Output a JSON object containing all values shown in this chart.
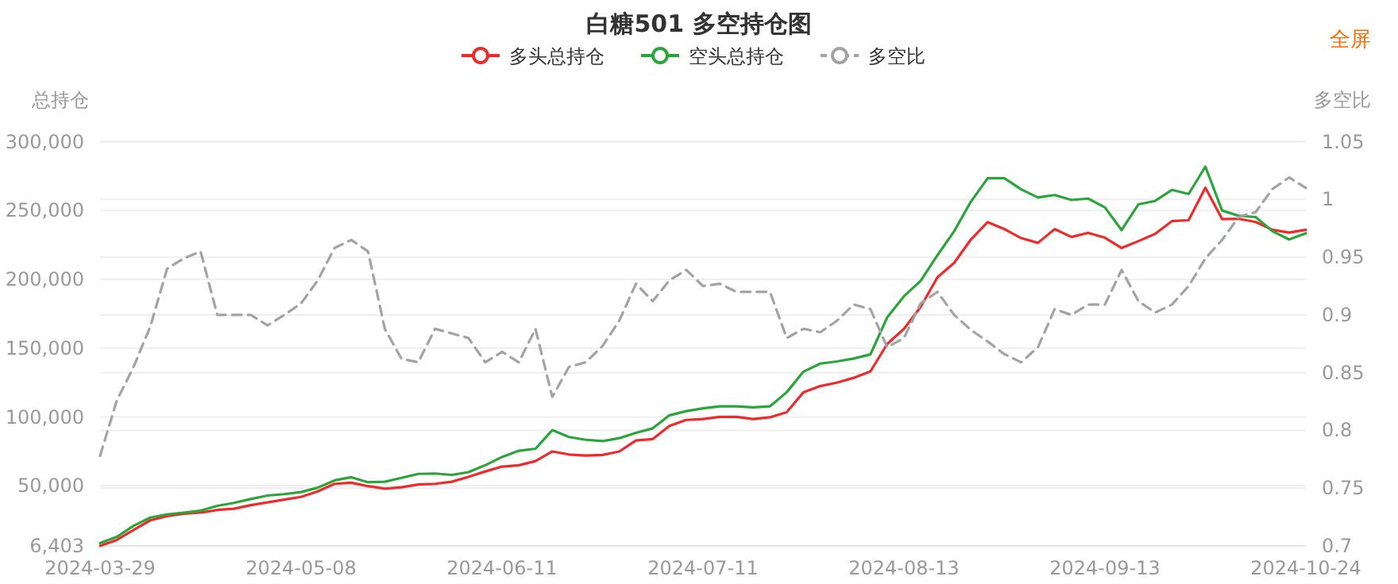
{
  "chart_data": {
    "type": "line",
    "title": "白糖501 多空持仓图",
    "ylabel": "总持仓",
    "y2label": "多空比",
    "annotations": [
      "全屏"
    ],
    "categories": [
      "2024-03-29",
      null,
      null,
      null,
      null,
      null,
      null,
      null,
      null,
      null,
      null,
      null,
      "2024-05-08",
      null,
      null,
      null,
      null,
      null,
      null,
      null,
      null,
      null,
      null,
      null,
      "2024-06-11",
      null,
      null,
      null,
      null,
      null,
      null,
      null,
      null,
      null,
      null,
      null,
      "2024-07-11",
      null,
      null,
      null,
      null,
      null,
      null,
      null,
      null,
      null,
      null,
      null,
      "2024-08-13",
      null,
      null,
      null,
      null,
      null,
      null,
      null,
      null,
      null,
      null,
      null,
      "2024-09-13",
      null,
      null,
      null,
      null,
      null,
      null,
      null,
      null,
      null,
      null,
      null,
      "2024-10-24"
    ],
    "series": [
      {
        "name": "多头总持仓",
        "color": "#ee2a2a",
        "values": [
          6403,
          10800,
          18000,
          25000,
          28000,
          29800,
          30600,
          32500,
          33400,
          36000,
          38000,
          40000,
          42000,
          46000,
          51500,
          52300,
          49800,
          48000,
          49000,
          51000,
          51500,
          53000,
          56500,
          60500,
          64000,
          65000,
          68000,
          75000,
          72800,
          72000,
          72500,
          75000,
          83000,
          84000,
          93600,
          97900,
          98500,
          100100,
          100100,
          98600,
          99800,
          103500,
          118000,
          122500,
          125000,
          128500,
          133200,
          153100,
          164000,
          180000,
          201500,
          212000,
          229000,
          241600,
          236500,
          230000,
          226500,
          236500,
          230800,
          233800,
          230300,
          222800,
          227800,
          233000,
          242300,
          243000,
          266600,
          243800,
          244000,
          241700,
          236000,
          234000,
          236000
        ]
      },
      {
        "name": "空头总持仓",
        "color": "#2aa53a",
        "values": [
          8400,
          13000,
          21000,
          27000,
          29300,
          30600,
          32000,
          35500,
          37700,
          40500,
          43000,
          44000,
          45500,
          48700,
          54000,
          56300,
          52700,
          53000,
          55800,
          58700,
          59000,
          58000,
          60000,
          65000,
          71000,
          75500,
          77000,
          90500,
          85500,
          83500,
          82500,
          84700,
          88500,
          91800,
          101300,
          104300,
          106300,
          107800,
          107800,
          107100,
          107800,
          118000,
          133000,
          138800,
          140400,
          142500,
          145500,
          172400,
          187700,
          199000,
          217500,
          235000,
          256500,
          273500,
          273500,
          265400,
          259500,
          261300,
          257700,
          258700,
          252300,
          235800,
          254500,
          257000,
          265000,
          262000,
          281900,
          250000,
          246200,
          245300,
          235000,
          229000,
          233500
        ]
      },
      {
        "name": "多空比",
        "color": "#a3a3a3",
        "axis": "y2",
        "line_style": "dashed",
        "values": [
          0.778,
          0.826,
          0.855,
          0.89,
          0.94,
          0.949,
          0.955,
          0.9,
          0.9,
          0.9,
          0.891,
          0.9,
          0.91,
          0.93,
          0.958,
          0.965,
          0.955,
          0.888,
          0.862,
          0.859,
          0.888,
          0.884,
          0.88,
          0.859,
          0.868,
          0.859,
          0.888,
          0.829,
          0.855,
          0.859,
          0.873,
          0.895,
          0.927,
          0.912,
          0.93,
          0.939,
          0.925,
          0.927,
          0.92,
          0.92,
          0.92,
          0.88,
          0.888,
          0.885,
          0.895,
          0.909,
          0.905,
          0.872,
          0.88,
          0.91,
          0.92,
          0.9,
          0.887,
          0.877,
          0.866,
          0.859,
          0.872,
          0.905,
          0.9,
          0.909,
          0.909,
          0.939,
          0.912,
          0.902,
          0.909,
          0.925,
          0.949,
          0.965,
          0.985,
          0.989,
          1.009,
          1.019,
          1.01
        ]
      }
    ],
    "ylim": [
      6403,
      300000
    ],
    "yticks": [
      {
        "value": 6403,
        "label": "6,403"
      },
      {
        "value": 50000,
        "label": "50,000"
      },
      {
        "value": 100000,
        "label": "100,000"
      },
      {
        "value": 150000,
        "label": "150,000"
      },
      {
        "value": 200000,
        "label": "200,000"
      },
      {
        "value": 250000,
        "label": "250,000"
      },
      {
        "value": 300000,
        "label": "300,000"
      }
    ],
    "y2lim": [
      0.7,
      1.05
    ],
    "y2ticks": [
      0.7,
      0.75,
      0.8,
      0.85,
      0.9,
      0.95,
      1,
      1.05
    ],
    "grid": "y",
    "legend": "top",
    "marker": "none",
    "line_style": "solid"
  }
}
